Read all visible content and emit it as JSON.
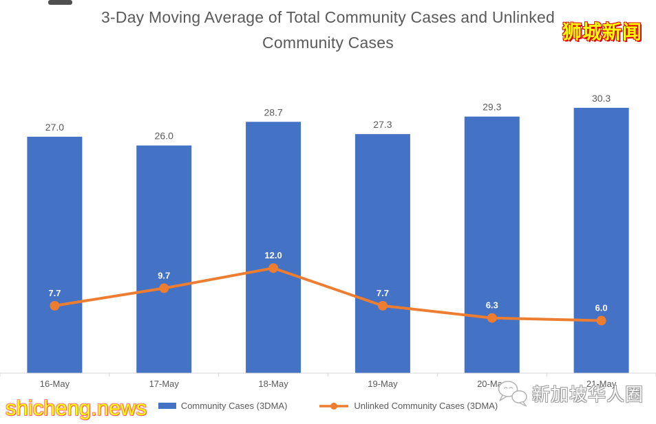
{
  "chart_data": {
    "type": "combo",
    "title_lines": [
      "3-Day Moving Average of Total Community Cases and Unlinked",
      "Community Cases"
    ],
    "categories": [
      "16-May",
      "17-May",
      "18-May",
      "19-May",
      "20-May",
      "21-May"
    ],
    "series": [
      {
        "name": "Community Cases (3DMA)",
        "type": "bar",
        "color": "#4472C4",
        "values": [
          27.0,
          26.0,
          28.7,
          27.3,
          29.3,
          30.3
        ],
        "label_color": "#595959"
      },
      {
        "name": "Unlinked Community Cases (3DMA)",
        "type": "line",
        "color": "#ED7D31",
        "values": [
          7.7,
          9.7,
          12.0,
          7.7,
          6.3,
          6.0
        ],
        "label_color": "#FFFFFF"
      }
    ],
    "ylim": [
      0,
      35
    ],
    "grid": false,
    "legend_position": "bottom",
    "axis_color": "#D6D6D6",
    "text_color": "#595959",
    "value_decimals": 1
  },
  "watermarks": {
    "top_right": "狮城新闻",
    "bottom_left": "shicheng.news",
    "bottom_right": "新加坡华人圈"
  },
  "watermark_colors": {
    "yellow": "#FFFF00",
    "red_outline": "#E60000",
    "white": "#FFFFFF",
    "gray_outline": "#9B9B9B"
  }
}
